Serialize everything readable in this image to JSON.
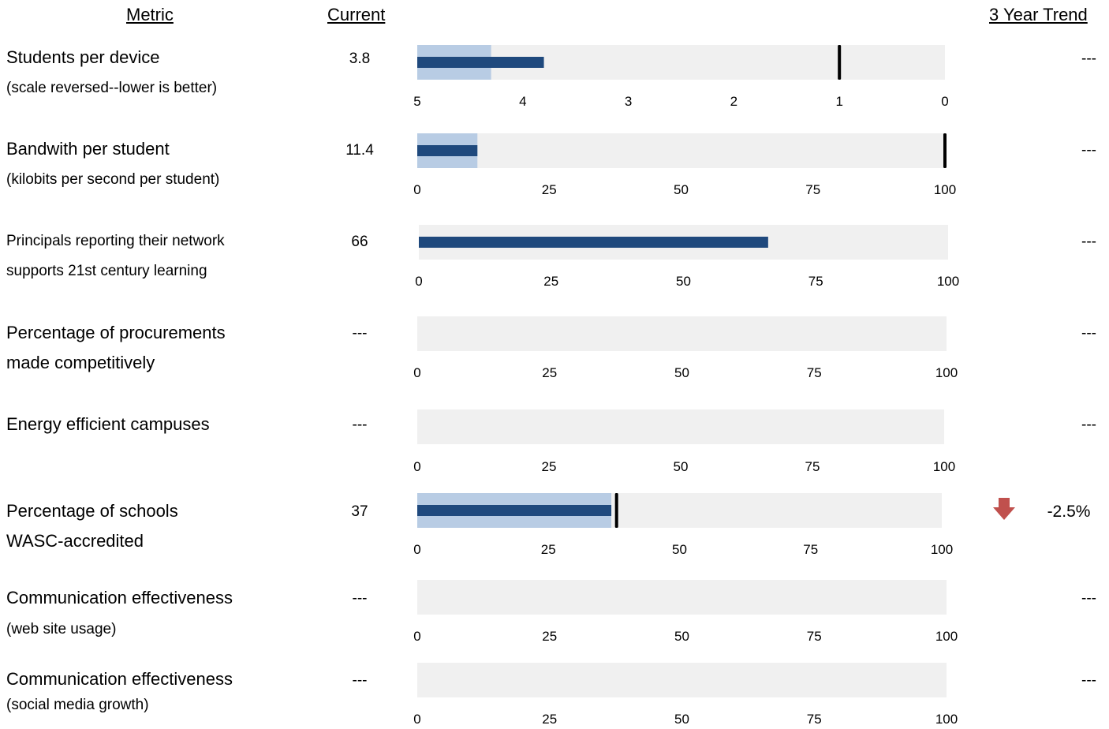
{
  "headers": {
    "metric": "Metric",
    "current": "Current",
    "trend": "3 Year Trend"
  },
  "colors": {
    "track": "#f0f0f0",
    "range": "#b8cce4",
    "bar": "#1f497d",
    "target": "#000000",
    "down_arrow": "#c0504d"
  },
  "rows": [
    {
      "label": "Students per device",
      "sub": "(scale reversed--lower is better)",
      "current": "3.8",
      "trend": "---"
    },
    {
      "label": "Bandwith per student",
      "sub": "(kilobits per second per student)",
      "current": "11.4",
      "trend": "---"
    },
    {
      "label_line1": "Principals reporting their network",
      "label_line2": "supports 21st century learning",
      "current": "66",
      "trend": "---"
    },
    {
      "label_line1": "Percentage of procurements",
      "label_line2": "made competitively",
      "current": "---",
      "trend": "---"
    },
    {
      "label": "Energy efficient campuses",
      "current": "---",
      "trend": "---"
    },
    {
      "label_line1": "Percentage of schools",
      "label_line2": "WASC-accredited",
      "current": "37",
      "trend_value": "-2.5%",
      "trend_icon": "down-arrow-icon"
    },
    {
      "label": "Communication effectiveness",
      "sub": "(web site usage)",
      "current": "---",
      "trend": "---"
    },
    {
      "label": "Communication effectiveness",
      "sub": "(social media growth)",
      "current": "---",
      "trend": "---"
    }
  ],
  "chart_data": [
    {
      "type": "bullet",
      "reversed": true,
      "xlim": [
        5,
        0
      ],
      "ticks": [
        "5",
        "4",
        "3",
        "2",
        "1",
        "0"
      ],
      "range": 4.3,
      "value": 3.8,
      "target": 1
    },
    {
      "type": "bullet",
      "xlim": [
        0,
        100
      ],
      "ticks": [
        "0",
        "25",
        "50",
        "75",
        "100"
      ],
      "range": 11.4,
      "value": 11.4,
      "target": 100
    },
    {
      "type": "bullet",
      "xlim": [
        0,
        100
      ],
      "ticks": [
        "0",
        "25",
        "50",
        "75",
        "100"
      ],
      "range": null,
      "value": 66,
      "target": null
    },
    {
      "type": "bullet",
      "xlim": [
        0,
        100
      ],
      "ticks": [
        "0",
        "25",
        "50",
        "75",
        "100"
      ],
      "range": null,
      "value": null,
      "target": null
    },
    {
      "type": "bullet",
      "xlim": [
        0,
        100
      ],
      "ticks": [
        "0",
        "25",
        "50",
        "75",
        "100"
      ],
      "range": null,
      "value": null,
      "target": null
    },
    {
      "type": "bullet",
      "xlim": [
        0,
        100
      ],
      "ticks": [
        "0",
        "25",
        "50",
        "75",
        "100"
      ],
      "range": 37,
      "value": 37,
      "target": 38
    },
    {
      "type": "bullet",
      "xlim": [
        0,
        100
      ],
      "ticks": [
        "0",
        "25",
        "50",
        "75",
        "100"
      ],
      "range": null,
      "value": null,
      "target": null
    },
    {
      "type": "bullet",
      "xlim": [
        0,
        100
      ],
      "ticks": [
        "0",
        "25",
        "50",
        "75",
        "100"
      ],
      "range": null,
      "value": null,
      "target": null
    }
  ]
}
